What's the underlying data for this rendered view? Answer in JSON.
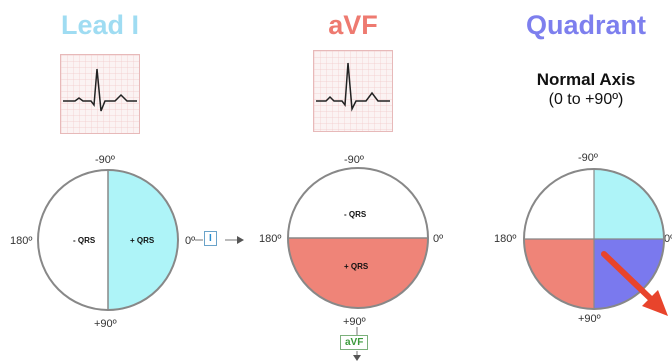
{
  "titles": {
    "lead_i": "Lead I",
    "avf": "aVF",
    "quadrant": "Quadrant"
  },
  "colors": {
    "lead_i": "#aef4f8",
    "avf": "#ef8478",
    "quadrant": "#7a79ee",
    "arrow": "#e8442c",
    "title_lead_i": "#9fdcf2",
    "title_avf": "#ee7a70",
    "title_quadrant": "#7d7fee"
  },
  "axis_labels": {
    "top": "-90º",
    "bottom": "+90º",
    "left": "180º",
    "right": "0º"
  },
  "lead_i_circle": {
    "left_label": "- QRS",
    "right_label": "+ QRS",
    "tag": "I"
  },
  "avf_circle": {
    "top_label": "- QRS",
    "bottom_label": "+ QRS",
    "tag": "aVF"
  },
  "quadrant_info": {
    "heading": "Normal Axis",
    "range": "(0 to +90º)"
  },
  "icons": [
    "ecg-strip-icon",
    "arrow-icon"
  ]
}
